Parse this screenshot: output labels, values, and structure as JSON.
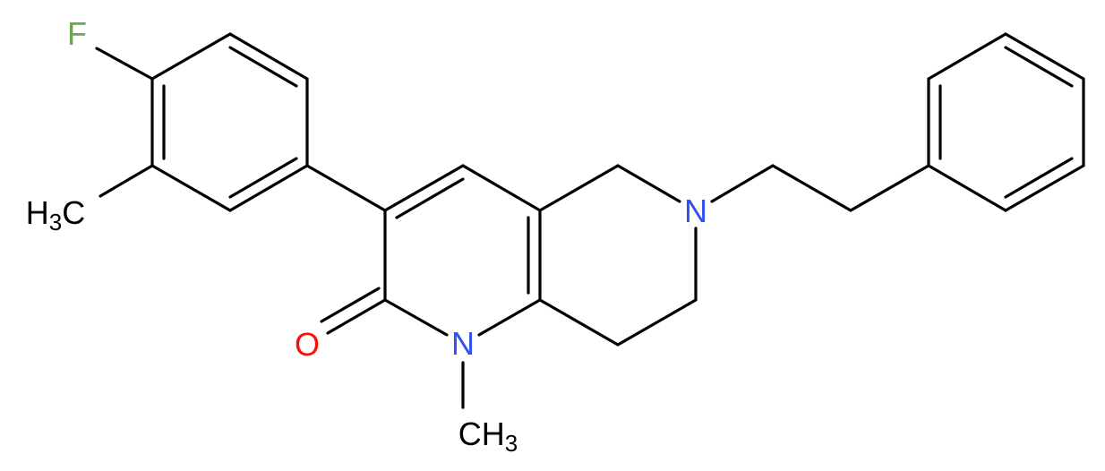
{
  "atoms": [
    {
      "parts": [
        "F"
      ]
    },
    {
      "parts": [
        "H",
        "3",
        "C"
      ]
    },
    {
      "parts": [
        "O"
      ]
    },
    {
      "parts": [
        "N"
      ]
    },
    {
      "parts": [
        "N"
      ]
    },
    {
      "parts": [
        "CH",
        "3"
      ]
    }
  ]
}
